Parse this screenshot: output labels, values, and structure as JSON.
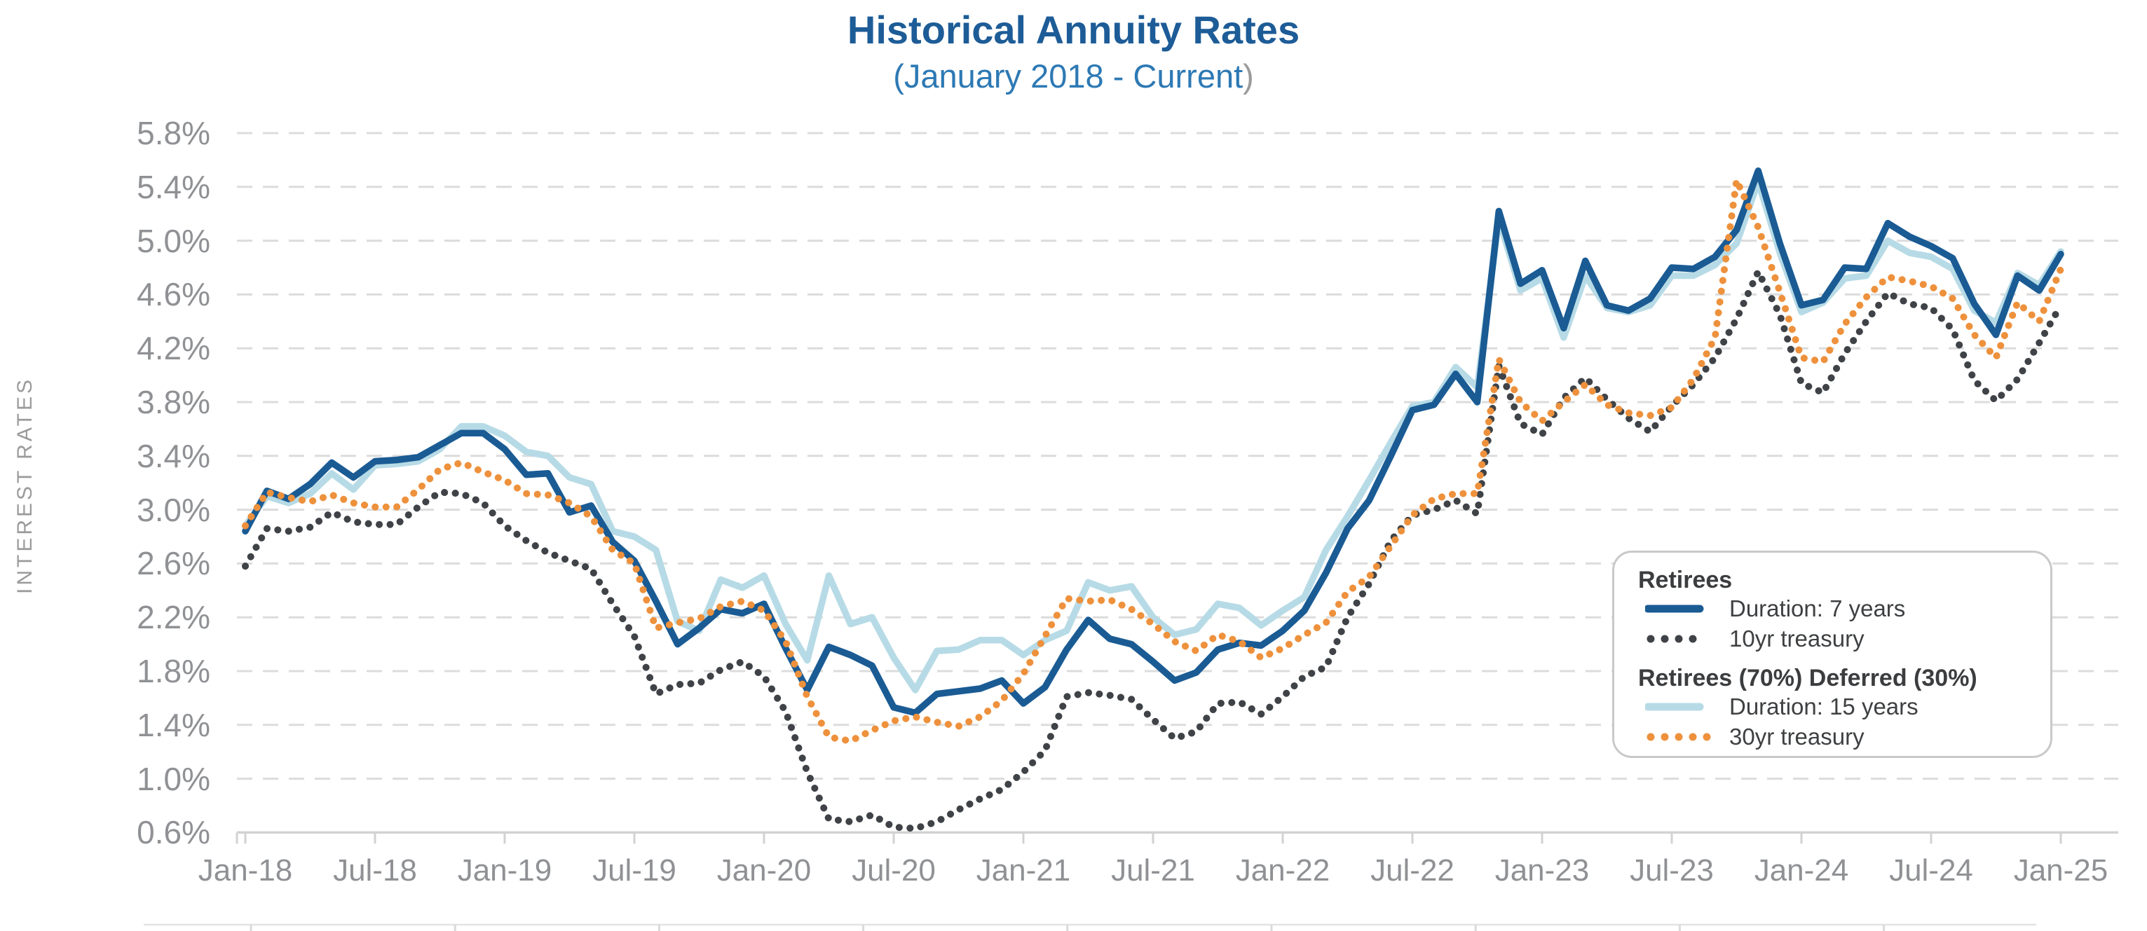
{
  "title": "Historical Annuity Rates",
  "subtitle_main": "(January 2018 - Current",
  "subtitle_close": ")",
  "y_axis_title": "INTEREST RATES",
  "colors": {
    "title_blue": "#1d5c97",
    "subtitle_blue": "#2d79b4",
    "duration7_blue": "#1a5b94",
    "duration15_lightblue": "#b7dbe6",
    "treasury10_black": "#3f4347",
    "treasury30_orange": "#ee913c",
    "gridline_gray": "#dcdcdc",
    "axis_line_gray": "#d2d2d2",
    "axis_text_gray": "#8f9194",
    "legend_border_gray": "#c9c9c9"
  },
  "legend": {
    "groups": [
      {
        "heading": "Retirees",
        "items": [
          {
            "label": "Duration: 7 years",
            "series": "duration7",
            "style": "solid"
          },
          {
            "label": "10yr treasury",
            "series": "treasury10",
            "style": "dotted"
          }
        ]
      },
      {
        "heading": "Retirees (70%) Deferred (30%)",
        "items": [
          {
            "label": "Duration: 15 years",
            "series": "duration15",
            "style": "solid"
          },
          {
            "label": "30yr treasury",
            "series": "treasury30",
            "style": "dotted"
          }
        ]
      }
    ]
  },
  "chart_data": {
    "type": "line",
    "title": "Historical Annuity Rates",
    "subtitle": "(January 2018 - Current)",
    "ylabel": "INTEREST RATES",
    "ylim": [
      0.6,
      5.8
    ],
    "grid": "horizontal-dashed",
    "legend_position": "right-middle",
    "y_ticks": [
      {
        "value": 5.8,
        "label": "5.8%"
      },
      {
        "value": 5.4,
        "label": "5.4%"
      },
      {
        "value": 5.0,
        "label": "5.0%"
      },
      {
        "value": 4.6,
        "label": "4.6%"
      },
      {
        "value": 4.2,
        "label": "4.2%"
      },
      {
        "value": 3.8,
        "label": "3.8%"
      },
      {
        "value": 3.4,
        "label": "3.4%"
      },
      {
        "value": 3.0,
        "label": "3.0%"
      },
      {
        "value": 2.6,
        "label": "2.6%"
      },
      {
        "value": 2.2,
        "label": "2.2%"
      },
      {
        "value": 1.8,
        "label": "1.8%"
      },
      {
        "value": 1.4,
        "label": "1.4%"
      },
      {
        "value": 1.0,
        "label": "1.0%"
      },
      {
        "value": 0.6,
        "label": "0.6%"
      }
    ],
    "x_tick_labels": [
      "Jan-18",
      "Jul-18",
      "Jan-19",
      "Jul-19",
      "Jan-20",
      "Jul-20",
      "Jan-21",
      "Jul-21",
      "Jan-22",
      "Jul-22",
      "Jan-23",
      "Jul-23",
      "Jan-24",
      "Jul-24",
      "Jan-25"
    ],
    "x_months_start": "Jan-2018",
    "x_months_end": "Jan-2025",
    "series": [
      {
        "key": "duration15",
        "name": "Duration: 15 years",
        "group": "Retirees (70%) Deferred (30%)",
        "style": "solid",
        "color": "#b7dbe6",
        "values": [
          2.88,
          3.1,
          3.05,
          3.12,
          3.27,
          3.15,
          3.33,
          3.34,
          3.36,
          3.45,
          3.62,
          3.62,
          3.55,
          3.43,
          3.4,
          3.24,
          3.19,
          2.84,
          2.8,
          2.7,
          2.17,
          2.1,
          2.48,
          2.42,
          2.51,
          2.15,
          1.88,
          2.51,
          2.15,
          2.2,
          1.9,
          1.66,
          1.95,
          1.96,
          2.03,
          2.03,
          1.92,
          2.03,
          2.1,
          2.46,
          2.4,
          2.43,
          2.2,
          2.07,
          2.11,
          2.3,
          2.27,
          2.14,
          2.25,
          2.35,
          2.7,
          2.95,
          3.22,
          3.5,
          3.77,
          3.8,
          4.06,
          3.91,
          5.16,
          4.63,
          4.72,
          4.28,
          4.74,
          4.5,
          4.47,
          4.52,
          4.74,
          4.74,
          4.82,
          4.98,
          5.44,
          4.91,
          4.47,
          4.54,
          4.72,
          4.74,
          5.0,
          4.91,
          4.88,
          4.79,
          4.48,
          4.39,
          4.76,
          4.67,
          4.92
        ]
      },
      {
        "key": "duration7",
        "name": "Duration: 7 years",
        "group": "Retirees",
        "style": "solid",
        "color": "#1a5b94",
        "values": [
          2.84,
          3.14,
          3.08,
          3.19,
          3.35,
          3.24,
          3.36,
          3.37,
          3.39,
          3.48,
          3.57,
          3.57,
          3.45,
          3.26,
          3.27,
          2.98,
          3.03,
          2.76,
          2.62,
          2.32,
          2.0,
          2.12,
          2.26,
          2.23,
          2.3,
          1.97,
          1.66,
          1.98,
          1.92,
          1.84,
          1.53,
          1.49,
          1.63,
          1.65,
          1.67,
          1.73,
          1.56,
          1.68,
          1.96,
          2.18,
          2.04,
          2.0,
          1.87,
          1.73,
          1.79,
          1.96,
          2.01,
          1.99,
          2.1,
          2.25,
          2.53,
          2.86,
          3.07,
          3.4,
          3.74,
          3.78,
          4.01,
          3.8,
          5.22,
          4.68,
          4.78,
          4.35,
          4.85,
          4.52,
          4.48,
          4.57,
          4.8,
          4.79,
          4.88,
          5.08,
          5.52,
          4.98,
          4.52,
          4.56,
          4.8,
          4.79,
          5.13,
          5.03,
          4.96,
          4.87,
          4.53,
          4.3,
          4.74,
          4.63,
          4.9
        ]
      },
      {
        "key": "treasury10",
        "name": "10yr treasury",
        "group": "Retirees",
        "style": "dotted",
        "color": "#3f4347",
        "values": [
          2.58,
          2.86,
          2.84,
          2.87,
          2.98,
          2.91,
          2.89,
          2.89,
          3.02,
          3.13,
          3.12,
          3.05,
          2.88,
          2.77,
          2.68,
          2.62,
          2.56,
          2.3,
          2.06,
          1.63,
          1.7,
          1.71,
          1.81,
          1.87,
          1.76,
          1.5,
          1.05,
          0.7,
          0.68,
          0.73,
          0.64,
          0.63,
          0.68,
          0.77,
          0.85,
          0.92,
          1.05,
          1.21,
          1.61,
          1.64,
          1.62,
          1.59,
          1.44,
          1.3,
          1.35,
          1.56,
          1.57,
          1.48,
          1.61,
          1.76,
          1.83,
          2.2,
          2.45,
          2.77,
          2.96,
          3.0,
          3.07,
          2.97,
          4.07,
          3.64,
          3.56,
          3.83,
          3.98,
          3.82,
          3.68,
          3.58,
          3.77,
          3.93,
          4.13,
          4.42,
          4.77,
          4.45,
          3.94,
          3.87,
          4.16,
          4.4,
          4.61,
          4.53,
          4.5,
          4.34,
          3.96,
          3.81,
          3.97,
          4.24,
          4.52
        ]
      },
      {
        "key": "treasury30",
        "name": "30yr treasury",
        "group": "Retirees (70%) Deferred (30%)",
        "style": "dotted",
        "color": "#ee913c",
        "values": [
          2.88,
          3.13,
          3.09,
          3.06,
          3.11,
          3.05,
          3.02,
          3.02,
          3.15,
          3.3,
          3.35,
          3.28,
          3.22,
          3.12,
          3.11,
          3.05,
          2.95,
          2.7,
          2.6,
          2.12,
          2.16,
          2.19,
          2.28,
          2.32,
          2.25,
          2.02,
          1.61,
          1.31,
          1.28,
          1.36,
          1.43,
          1.46,
          1.42,
          1.39,
          1.46,
          1.58,
          1.78,
          2.06,
          2.34,
          2.32,
          2.33,
          2.26,
          2.15,
          2.02,
          1.95,
          2.07,
          2.02,
          1.9,
          1.97,
          2.07,
          2.16,
          2.39,
          2.5,
          2.73,
          2.96,
          3.08,
          3.12,
          3.12,
          4.12,
          3.8,
          3.66,
          3.8,
          3.93,
          3.78,
          3.72,
          3.7,
          3.76,
          3.97,
          4.28,
          5.45,
          5.1,
          4.62,
          4.13,
          4.1,
          4.38,
          4.58,
          4.73,
          4.7,
          4.66,
          4.57,
          4.3,
          4.13,
          4.54,
          4.4,
          4.79
        ]
      }
    ]
  }
}
